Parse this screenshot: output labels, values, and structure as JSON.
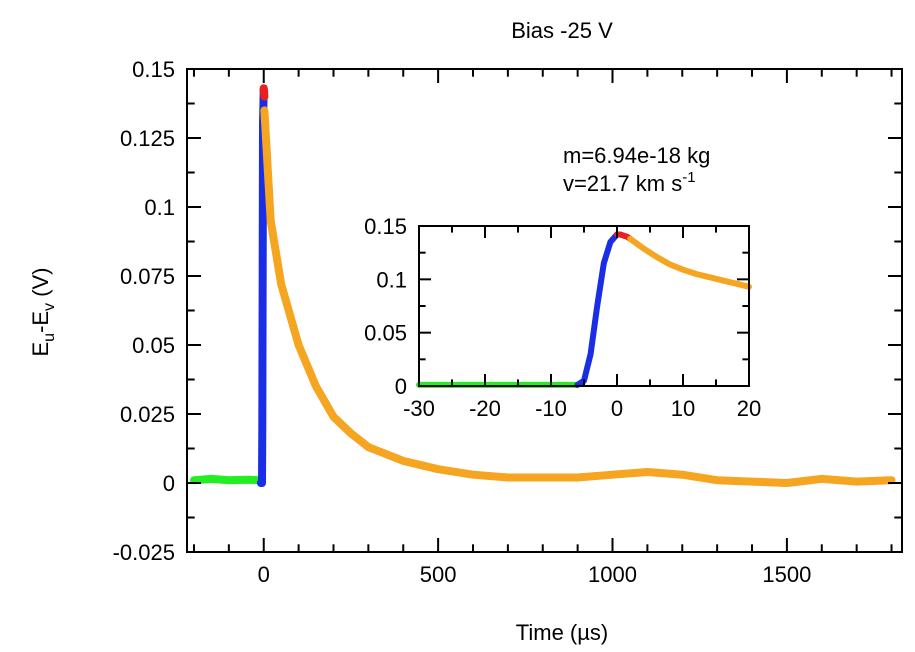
{
  "chart_data": {
    "type": "line",
    "title": "Bias -25 V",
    "xlabel": "Time (µs)",
    "ylabel": "E_u-E_v (V)",
    "ylabel_main": "E",
    "ylabel_sub1": "u",
    "ylabel_mid": "-E",
    "ylabel_sub2": "v",
    "ylabel_unit": " (V)",
    "xlim": [
      -220,
      1830
    ],
    "ylim": [
      -0.025,
      0.15
    ],
    "xticks": [
      0,
      500,
      1000,
      1500
    ],
    "xtick_labels": [
      "0",
      "500",
      "1000",
      "1500"
    ],
    "yticks": [
      -0.025,
      0,
      0.025,
      0.05,
      0.075,
      0.1,
      0.125,
      0.15
    ],
    "ytick_labels": [
      "-0.025",
      "0",
      "0.025",
      "0.05",
      "0.075",
      "0.1",
      "0.125",
      "0.15"
    ],
    "grid": false,
    "legend": "none",
    "annotations": {
      "mass": "m=6.94e-18 kg",
      "velocity": "v=21.7 km s",
      "velocity_exp": "-1"
    },
    "series": [
      {
        "color": "#22ee22",
        "x": [
          -200,
          -150,
          -100,
          -50,
          -15
        ],
        "y": [
          0.001,
          0.0015,
          0.001,
          0.0012,
          0.001
        ]
      },
      {
        "color": "#1a2ee6",
        "x": [
          -8,
          -5,
          -4,
          -3,
          -2,
          0
        ],
        "y": [
          0.0,
          0.0,
          0.02,
          0.08,
          0.13,
          0.142
        ]
      },
      {
        "color": "#e82020",
        "x": [
          -1,
          0,
          1,
          2
        ],
        "y": [
          0.142,
          0.143,
          0.142,
          0.14
        ]
      },
      {
        "color": "#f5a51f",
        "x": [
          2,
          20,
          50,
          100,
          150,
          200,
          250,
          300,
          400,
          500,
          600,
          700,
          800,
          900,
          1000,
          1100,
          1200,
          1300,
          1400,
          1500,
          1600,
          1700,
          1800
        ],
        "y": [
          0.135,
          0.095,
          0.072,
          0.05,
          0.035,
          0.024,
          0.018,
          0.013,
          0.008,
          0.005,
          0.003,
          0.002,
          0.002,
          0.002,
          0.003,
          0.004,
          0.003,
          0.001,
          0.0005,
          0.0,
          0.0015,
          0.0005,
          0.001
        ]
      }
    ],
    "inset": {
      "xlim": [
        -30,
        20
      ],
      "ylim": [
        0,
        0.15
      ],
      "xticks": [
        -30,
        -20,
        -10,
        0,
        10,
        20
      ],
      "xtick_labels": [
        "-30",
        "-20",
        "-10",
        "0",
        "10",
        "20"
      ],
      "yticks": [
        0,
        0.05,
        0.1,
        0.15
      ],
      "ytick_labels": [
        "0",
        "0.05",
        "0.1",
        "0.15"
      ],
      "series": [
        {
          "color": "#22ee22",
          "x": [
            -30,
            -20,
            -10,
            -6
          ],
          "y": [
            0.001,
            0.001,
            0.001,
            0.001
          ]
        },
        {
          "color": "#1a2ee6",
          "x": [
            -6,
            -5,
            -4,
            -3,
            -2,
            -1,
            0
          ],
          "y": [
            0.001,
            0.005,
            0.03,
            0.075,
            0.115,
            0.135,
            0.142
          ]
        },
        {
          "color": "#e82020",
          "x": [
            0,
            0.5,
            1,
            1.5,
            2
          ],
          "y": [
            0.142,
            0.142,
            0.141,
            0.14,
            0.138
          ]
        },
        {
          "color": "#f5a51f",
          "x": [
            2,
            4,
            6,
            8,
            10,
            12,
            14,
            16,
            18,
            20
          ],
          "y": [
            0.138,
            0.129,
            0.121,
            0.114,
            0.109,
            0.105,
            0.102,
            0.099,
            0.096,
            0.093
          ]
        }
      ]
    }
  }
}
